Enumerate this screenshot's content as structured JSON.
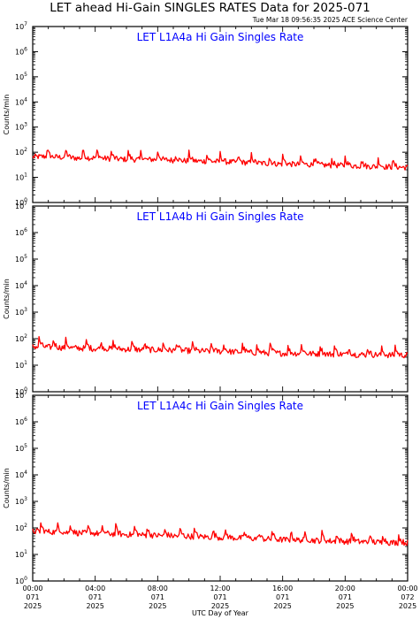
{
  "header": {
    "title": "LET ahead Hi-Gain SINGLES RATES Data for 2025-071",
    "timestamp": "Tue Mar 18 09:56:35 2025 ACE Science Center"
  },
  "colors": {
    "series": "#ff0000",
    "panel_title": "#0000ff",
    "axis": "#000000"
  },
  "chart_data": [
    {
      "type": "line",
      "title": "LET L1A4a Hi Gain Singles Rate",
      "ylabel": "Counts/min",
      "yscale": "log",
      "ylim": [
        1,
        10000000
      ],
      "ytick_exponents": [
        "0",
        "1",
        "2",
        "3",
        "4",
        "5",
        "6",
        "7"
      ],
      "xlim": [
        0,
        24
      ],
      "series": [
        {
          "x": [
            0,
            1,
            2,
            3,
            4,
            5,
            6,
            7,
            8,
            9,
            10,
            11,
            12,
            13,
            14,
            15,
            16,
            17,
            18,
            19,
            20,
            21,
            22,
            23,
            24
          ],
          "values": [
            65,
            68,
            62,
            58,
            60,
            55,
            52,
            50,
            52,
            48,
            45,
            44,
            42,
            40,
            38,
            36,
            34,
            33,
            32,
            30,
            30,
            28,
            27,
            26,
            25
          ],
          "spikes_x": [
            0.9,
            2.1,
            3.2,
            4.1,
            5.0,
            6.1,
            6.9,
            8.0,
            9.1,
            10.0,
            11.1,
            12.0,
            13.1,
            14.0,
            15.1,
            16.0,
            17.1,
            18.0,
            19.1,
            20.0,
            21.0,
            22.1,
            23.0
          ]
        }
      ]
    },
    {
      "type": "line",
      "title": "LET L1A4b Hi Gain Singles Rate",
      "ylabel": "Counts/min",
      "yscale": "log",
      "ylim": [
        1,
        10000000
      ],
      "ytick_exponents": [
        "0",
        "1",
        "2",
        "3",
        "4",
        "5",
        "6",
        "7"
      ],
      "xlim": [
        0,
        24
      ],
      "series": [
        {
          "x": [
            0,
            1,
            2,
            3,
            4,
            5,
            6,
            7,
            8,
            9,
            10,
            11,
            12,
            13,
            14,
            15,
            16,
            17,
            18,
            19,
            20,
            21,
            22,
            23,
            24
          ],
          "values": [
            50,
            48,
            46,
            44,
            42,
            42,
            40,
            38,
            38,
            36,
            35,
            34,
            33,
            32,
            30,
            29,
            28,
            28,
            27,
            26,
            26,
            25,
            25,
            24,
            24
          ],
          "spikes_x": [
            0.4,
            1.3,
            2.1,
            3.4,
            4.3,
            5.1,
            6.3,
            7.1,
            8.3,
            9.2,
            10.2,
            11.4,
            12.2,
            13.4,
            14.3,
            15.2,
            16.3,
            17.2,
            18.4,
            19.3,
            20.2,
            21.4,
            22.3,
            23.2
          ]
        }
      ]
    },
    {
      "type": "line",
      "title": "LET L1A4c Hi Gain Singles Rate",
      "ylabel": "Counts/min",
      "yscale": "log",
      "ylim": [
        1,
        10000000
      ],
      "ytick_exponents": [
        "0",
        "1",
        "2",
        "3",
        "4",
        "5",
        "6",
        "7"
      ],
      "xlim": [
        0,
        24
      ],
      "xticks": [
        {
          "time": "00:00",
          "day": "071",
          "year": "2025"
        },
        {
          "time": "04:00",
          "day": "071",
          "year": "2025"
        },
        {
          "time": "08:00",
          "day": "071",
          "year": "2025"
        },
        {
          "time": "12:00",
          "day": "071",
          "year": "2025"
        },
        {
          "time": "16:00",
          "day": "071",
          "year": "2025"
        },
        {
          "time": "20:00",
          "day": "071",
          "year": "2025"
        },
        {
          "time": "00:00",
          "day": "072",
          "year": "2025"
        }
      ],
      "xlabel": "UTC Day of Year",
      "series": [
        {
          "x": [
            0,
            1,
            2,
            3,
            4,
            5,
            6,
            7,
            8,
            9,
            10,
            11,
            12,
            13,
            14,
            15,
            16,
            17,
            18,
            19,
            20,
            21,
            22,
            23,
            24
          ],
          "values": [
            75,
            72,
            68,
            64,
            62,
            60,
            56,
            54,
            52,
            50,
            48,
            46,
            44,
            42,
            40,
            38,
            36,
            35,
            34,
            32,
            31,
            30,
            29,
            28,
            28
          ],
          "spikes_x": [
            0.5,
            1.6,
            2.4,
            3.5,
            4.4,
            5.3,
            6.5,
            7.3,
            8.4,
            9.4,
            10.3,
            11.5,
            12.3,
            13.5,
            14.4,
            15.3,
            16.5,
            17.4,
            18.5,
            19.4,
            20.4,
            21.5,
            22.4,
            23.4
          ]
        }
      ]
    }
  ]
}
